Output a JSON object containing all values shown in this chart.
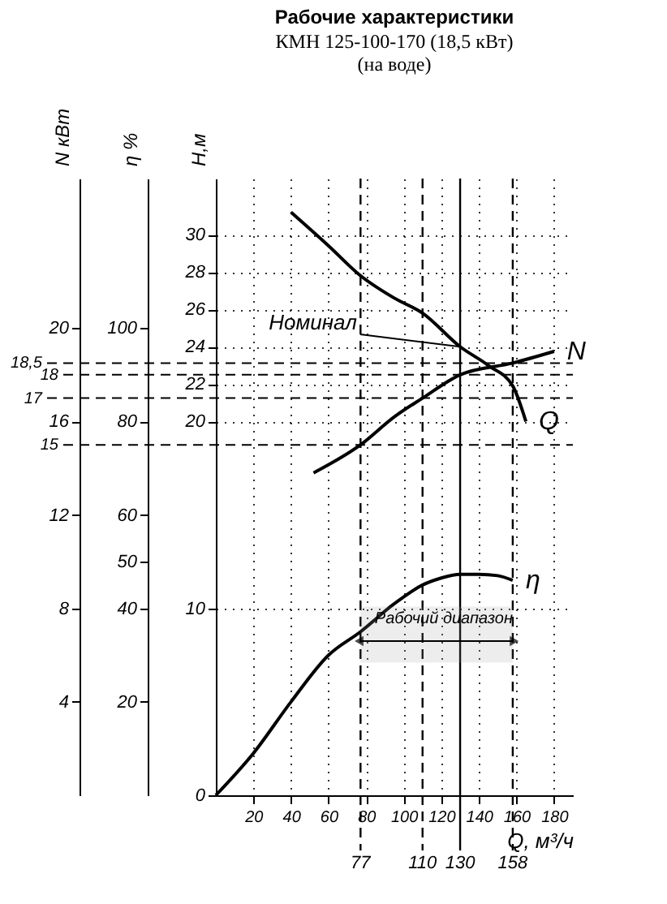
{
  "chart_data": {
    "type": "line",
    "title": "Рабочие характеристики",
    "subtitle": "КМН 125-100-170 (18,5 кВт)\n(на воде)",
    "xlabel": "Q, м³/ч",
    "ylabel": "Н,м",
    "y2label": "η %",
    "y3label": "N кВт",
    "xlim": [
      0,
      190
    ],
    "xticks": [
      20,
      40,
      60,
      80,
      100,
      120,
      140,
      160,
      180
    ],
    "ylim": [
      0,
      33
    ],
    "yticks": [
      0,
      10,
      20,
      22,
      24,
      26,
      28,
      30
    ],
    "y2lim": [
      0,
      132
    ],
    "y2ticks": [
      20,
      40,
      50,
      60,
      80,
      100
    ],
    "y3lim": [
      0,
      26.4
    ],
    "y3ticks": [
      4,
      8,
      12,
      16,
      20
    ],
    "grid": true,
    "legend": false,
    "marker": "none",
    "line_style": "solid",
    "series": [
      {
        "name": "Q",
        "color": "#000000",
        "x": [
          40,
          60,
          77,
          95,
          110,
          130,
          145,
          158,
          165
        ],
        "values": [
          31.2,
          29.4,
          27.8,
          26.6,
          25.8,
          24,
          23,
          21.9,
          20
        ]
      },
      {
        "name": "η",
        "color": "#000000",
        "axis": "y2",
        "x": [
          0,
          20,
          40,
          60,
          77,
          95,
          110,
          120,
          130,
          140,
          150,
          158
        ],
        "values": [
          0,
          9,
          20,
          30,
          35,
          41,
          45,
          46.5,
          47.3,
          47.3,
          47,
          46
        ]
      },
      {
        "name": "N",
        "color": "#000000",
        "axis": "y3",
        "x": [
          52,
          77,
          95,
          110,
          130,
          158,
          180
        ],
        "values": [
          13.8,
          15,
          16.2,
          17,
          18,
          18.5,
          19
        ]
      }
    ],
    "ref_lines": [
      {
        "axis": "x",
        "value": 77,
        "label": "77",
        "line_style": "dashed"
      },
      {
        "axis": "x",
        "value": 110,
        "label": "110",
        "line_style": "dashed"
      },
      {
        "axis": "x",
        "value": 130,
        "label": "130",
        "line_style": "solid"
      },
      {
        "axis": "x",
        "value": 158,
        "label": "158",
        "line_style": "dashed"
      },
      {
        "axis": "y3",
        "value": 15,
        "label": "15",
        "line_style": "dashed"
      },
      {
        "axis": "y3",
        "value": 17,
        "label": "17",
        "line_style": "dashed"
      },
      {
        "axis": "y3",
        "value": 18,
        "label": "18",
        "line_style": "dashed"
      },
      {
        "axis": "y3",
        "value": 18.5,
        "label": "18,5",
        "line_style": "dashed"
      }
    ],
    "bands": [
      {
        "axis": "x",
        "from": 77,
        "to": 158,
        "label": "Рабочий диапазон"
      }
    ],
    "annotations": [
      {
        "text": "Номинал",
        "x": 130,
        "y": 24
      }
    ]
  }
}
